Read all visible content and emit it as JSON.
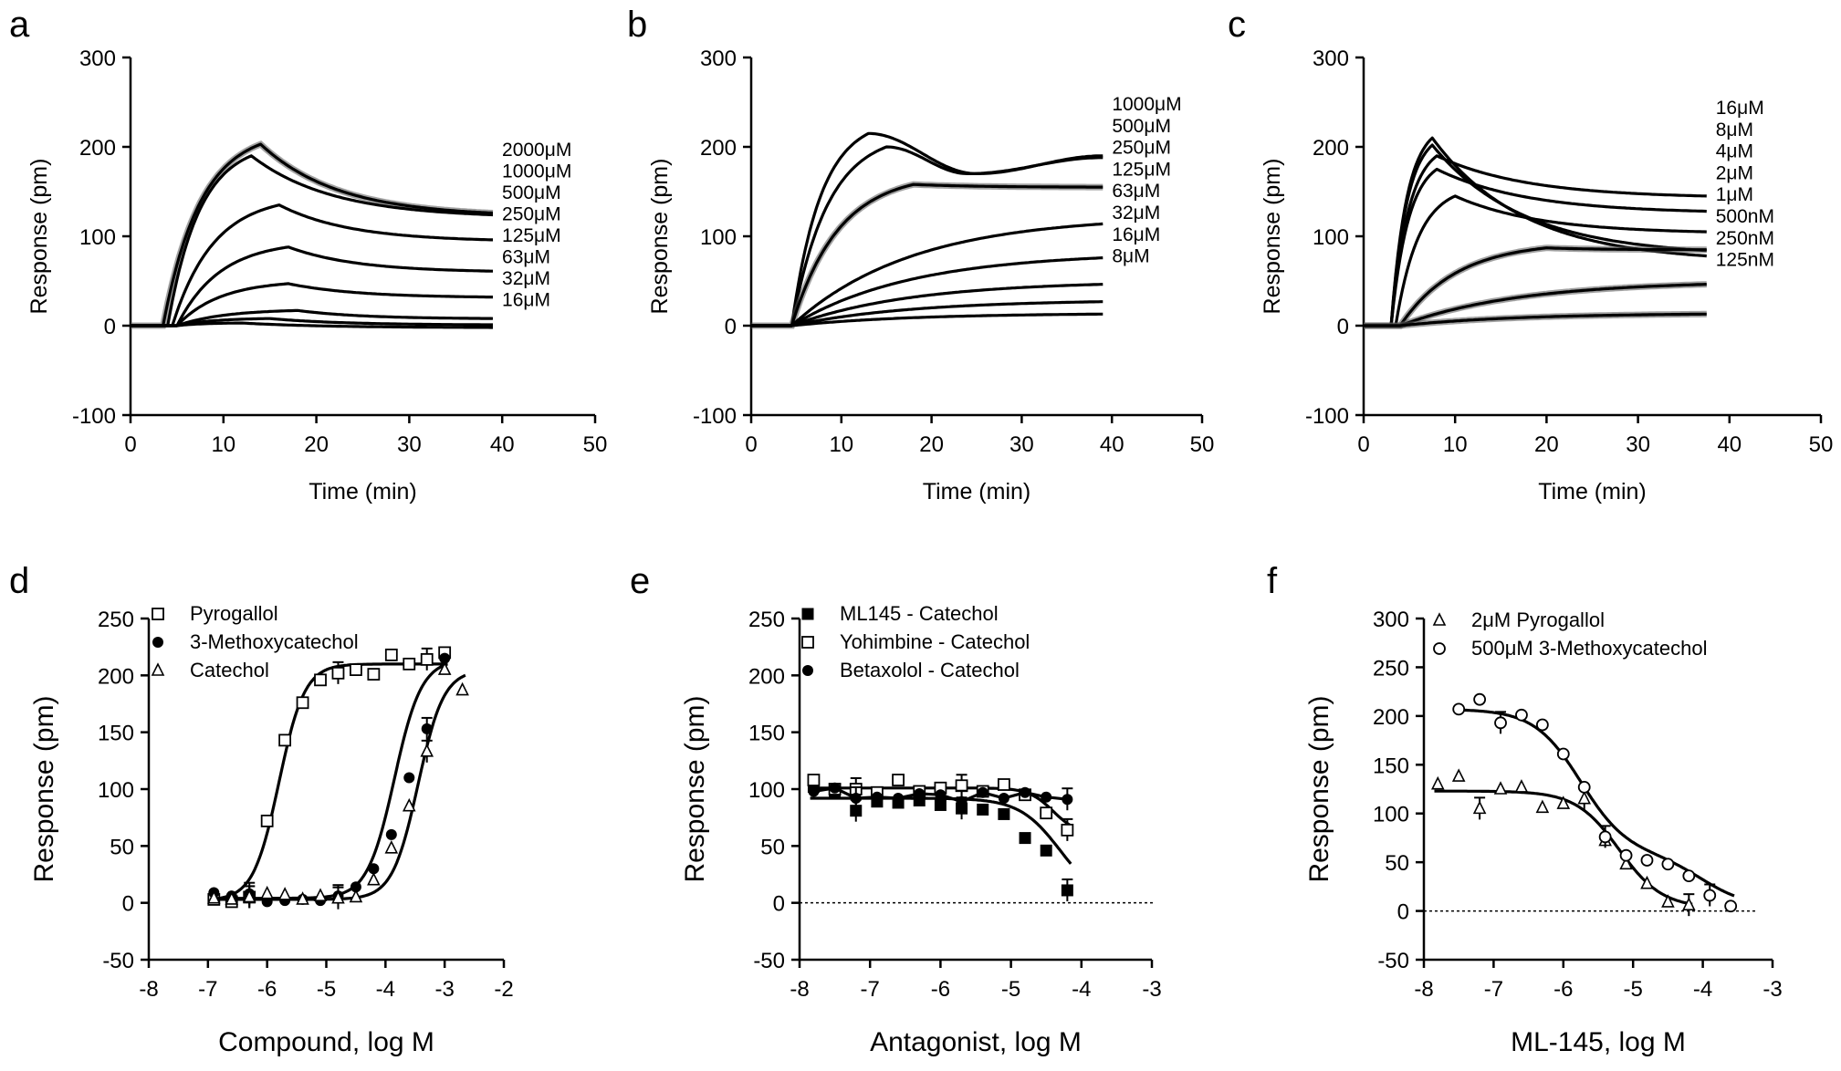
{
  "chart_data": [
    {
      "panel": "a",
      "type": "line",
      "xlabel": "Time (min)",
      "ylabel": "Response (pm)",
      "xlim": [
        0,
        50
      ],
      "ylim": [
        -100,
        300
      ],
      "xticks": [
        0,
        10,
        20,
        30,
        40,
        50
      ],
      "yticks": [
        -100,
        0,
        100,
        200,
        300
      ],
      "grid": false,
      "series": [
        {
          "name": "2000μM",
          "onset": 3.5,
          "peak": 203,
          "tpeak": 14,
          "end": 126,
          "tend": 39,
          "error": true
        },
        {
          "name": "1000μM",
          "onset": 4,
          "peak": 190,
          "tpeak": 13,
          "end": 124,
          "tend": 39,
          "error": false
        },
        {
          "name": "500μM",
          "onset": 4.5,
          "peak": 135,
          "tpeak": 16,
          "end": 96,
          "tend": 39,
          "error": false
        },
        {
          "name": "250μM",
          "onset": 5,
          "peak": 88,
          "tpeak": 17,
          "end": 61,
          "tend": 39,
          "error": false
        },
        {
          "name": "125μM",
          "onset": 5,
          "peak": 47,
          "tpeak": 17,
          "end": 32,
          "tend": 39,
          "error": false
        },
        {
          "name": "63μM",
          "onset": 5,
          "peak": 17,
          "tpeak": 18,
          "end": 8,
          "tend": 39,
          "error": false
        },
        {
          "name": "32μM",
          "onset": 5,
          "peak": 8,
          "tpeak": 15,
          "end": 1,
          "tend": 39,
          "error": false
        },
        {
          "name": "16μM",
          "onset": 5,
          "peak": 3,
          "tpeak": 12,
          "end": -2,
          "tend": 39,
          "error": false
        }
      ]
    },
    {
      "panel": "b",
      "type": "line",
      "xlabel": "Time (min)",
      "ylabel": "Response (pm)",
      "xlim": [
        0,
        50
      ],
      "ylim": [
        -100,
        300
      ],
      "xticks": [
        0,
        10,
        20,
        30,
        40,
        50
      ],
      "yticks": [
        -100,
        0,
        100,
        200,
        300
      ],
      "grid": false,
      "series": [
        {
          "name": "1000μM",
          "onset": 4.5,
          "peak": 215,
          "tpeak": 13,
          "dip": 170,
          "tdip": 25,
          "end": 190,
          "tend": 39,
          "error": false
        },
        {
          "name": "500μM",
          "onset": 4.5,
          "peak": 200,
          "tpeak": 15,
          "dip": 170,
          "tdip": 24,
          "end": 188,
          "tend": 39,
          "error": false
        },
        {
          "name": "250μM",
          "onset": 4.5,
          "peak": 158,
          "tpeak": 18,
          "end": 155,
          "tend": 39,
          "error": true
        },
        {
          "name": "125μM",
          "onset": 4.5,
          "peak": 123,
          "tpeak": 39,
          "end": 123,
          "tend": 39,
          "error": false
        },
        {
          "name": "63μM",
          "onset": 4.5,
          "peak": 82,
          "tpeak": 39,
          "end": 82,
          "tend": 39,
          "error": false
        },
        {
          "name": "32μM",
          "onset": 4.5,
          "peak": 50,
          "tpeak": 39,
          "end": 50,
          "tend": 39,
          "error": false
        },
        {
          "name": "16μM",
          "onset": 4.5,
          "peak": 29,
          "tpeak": 39,
          "end": 29,
          "tend": 39,
          "error": false
        },
        {
          "name": "8μM",
          "onset": 4.5,
          "peak": 14,
          "tpeak": 39,
          "end": 14,
          "tend": 39,
          "error": false
        }
      ]
    },
    {
      "panel": "c",
      "type": "line",
      "xlabel": "Time (min)",
      "ylabel": "Response (pm)",
      "xlim": [
        0,
        50
      ],
      "ylim": [
        -100,
        300
      ],
      "xticks": [
        0,
        10,
        20,
        30,
        40,
        50
      ],
      "yticks": [
        -100,
        0,
        100,
        200,
        300
      ],
      "grid": false,
      "series": [
        {
          "name": "16μM",
          "onset": 3,
          "peak": 210,
          "tpeak": 7.5,
          "end": 78,
          "tend": 37.5,
          "error": false
        },
        {
          "name": "8μM",
          "onset": 3,
          "peak": 202,
          "tpeak": 7.5,
          "end": 84,
          "tend": 37.5,
          "error": false
        },
        {
          "name": "4μM",
          "onset": 3,
          "peak": 190,
          "tpeak": 8,
          "end": 145,
          "tend": 37.5,
          "error": false
        },
        {
          "name": "2μM",
          "onset": 3,
          "peak": 175,
          "tpeak": 8,
          "end": 128,
          "tend": 37.5,
          "error": false
        },
        {
          "name": "1μM",
          "onset": 3.5,
          "peak": 145,
          "tpeak": 10,
          "end": 105,
          "tend": 37.5,
          "error": false
        },
        {
          "name": "500nM",
          "onset": 4,
          "peak": 87,
          "tpeak": 20,
          "end": 85,
          "tend": 37.5,
          "error": true
        },
        {
          "name": "250nM",
          "onset": 4,
          "peak": 50,
          "tpeak": 37.5,
          "end": 50,
          "tend": 37.5,
          "error": true
        },
        {
          "name": "125nM",
          "onset": 4,
          "peak": 14,
          "tpeak": 37.5,
          "end": 14,
          "tend": 37.5,
          "error": true
        }
      ]
    },
    {
      "panel": "d",
      "type": "scatter",
      "xlabel": "Compound, log M",
      "ylabel": "Response (pm)",
      "xlim": [
        -8,
        -2
      ],
      "ylim": [
        -50,
        250
      ],
      "xticks": [
        -8,
        -7,
        -6,
        -5,
        -4,
        -3,
        -2
      ],
      "yticks": [
        -50,
        0,
        50,
        100,
        150,
        200,
        250
      ],
      "legend": "top-left",
      "grid": false,
      "series": [
        {
          "name": "Pyrogallol",
          "marker": "open-square",
          "x": [
            -6.9,
            -6.6,
            -6.3,
            -6.0,
            -5.7,
            -5.4,
            -5.1,
            -4.8,
            -4.5,
            -4.2,
            -3.9,
            -3.6,
            -3.3,
            -3.0
          ],
          "y": [
            3,
            1,
            5,
            72,
            143,
            176,
            196,
            202,
            205,
            201,
            218,
            210,
            214,
            220
          ],
          "fit": {
            "bottom": 2,
            "top": 210,
            "ec50": -5.8,
            "hill": 2.0
          }
        },
        {
          "name": "3-Methoxycatechol",
          "marker": "filled-circle",
          "x": [
            -6.9,
            -6.6,
            -6.3,
            -6.0,
            -5.7,
            -5.4,
            -5.1,
            -4.8,
            -4.5,
            -4.2,
            -3.9,
            -3.6,
            -3.3,
            -3.0
          ],
          "y": [
            9,
            6,
            8,
            1,
            2,
            3,
            2,
            6,
            14,
            30,
            60,
            110,
            153,
            215
          ],
          "fit": {
            "bottom": 4,
            "top": 214,
            "ec50": -3.85,
            "hill": 1.9
          }
        },
        {
          "name": "Catechol",
          "marker": "open-triangle",
          "x": [
            -6.9,
            -6.6,
            -6.3,
            -6.0,
            -5.7,
            -5.4,
            -5.1,
            -4.8,
            -4.5,
            -4.2,
            -3.9,
            -3.6,
            -3.3,
            -3.0,
            -2.7
          ],
          "y": [
            4,
            3,
            5,
            8,
            7,
            3,
            6,
            4,
            5,
            20,
            48,
            85,
            133,
            205,
            187
          ],
          "fit": {
            "bottom": 3,
            "top": 205,
            "ec50": -3.45,
            "hill": 2.0
          }
        }
      ]
    },
    {
      "panel": "e",
      "type": "scatter",
      "xlabel": "Antagonist, log M",
      "ylabel": "Response (pm)",
      "xlim": [
        -8,
        -3
      ],
      "ylim": [
        -50,
        250
      ],
      "xticks": [
        -8,
        -7,
        -6,
        -5,
        -4,
        -3
      ],
      "yticks": [
        -50,
        0,
        50,
        100,
        150,
        200,
        250
      ],
      "legend": "top-left",
      "grid": false,
      "reference_line": 0,
      "series": [
        {
          "name": "ML145 - Catechol",
          "marker": "filled-square",
          "x": [
            -7.8,
            -7.5,
            -7.2,
            -6.9,
            -6.6,
            -6.3,
            -6.0,
            -5.7,
            -5.4,
            -5.1,
            -4.8,
            -4.5,
            -4.2
          ],
          "y": [
            102,
            97,
            81,
            89,
            88,
            90,
            86,
            83,
            82,
            78,
            57,
            46,
            11
          ],
          "fit": {
            "bottom": 0,
            "top": 92,
            "ec50": -4.3,
            "hill": 1.5
          }
        },
        {
          "name": "Yohimbine - Catechol",
          "marker": "open-square",
          "x": [
            -7.8,
            -7.5,
            -7.2,
            -6.9,
            -6.6,
            -6.3,
            -6.0,
            -5.7,
            -5.4,
            -5.1,
            -4.8,
            -4.5,
            -4.2
          ],
          "y": [
            108,
            100,
            100,
            97,
            108,
            98,
            101,
            103,
            98,
            104,
            95,
            79,
            64
          ],
          "fit": {
            "bottom": 60,
            "top": 101,
            "ec50": -4.4,
            "hill": 2.5
          }
        },
        {
          "name": "Betaxolol - Catechol",
          "marker": "filled-circle",
          "x": [
            -7.8,
            -7.5,
            -7.2,
            -6.9,
            -6.6,
            -6.3,
            -6.0,
            -5.7,
            -5.4,
            -5.1,
            -4.8,
            -4.5,
            -4.2
          ],
          "y": [
            98,
            101,
            92,
            93,
            92,
            96,
            95,
            89,
            97,
            92,
            97,
            93,
            91
          ]
        }
      ]
    },
    {
      "panel": "f",
      "type": "scatter",
      "xlabel": "ML-145, log M",
      "ylabel": "Response (pm)",
      "xlim": [
        -8,
        -3
      ],
      "ylim": [
        -50,
        300
      ],
      "xticks": [
        -8,
        -7,
        -6,
        -5,
        -4,
        -3
      ],
      "yticks": [
        -50,
        0,
        50,
        100,
        150,
        200,
        250,
        300
      ],
      "legend": "top-left",
      "grid": false,
      "reference_line": 0,
      "series": [
        {
          "name": "2μM Pyrogallol",
          "marker": "open-triangle",
          "x": [
            -7.8,
            -7.5,
            -7.2,
            -6.9,
            -6.6,
            -6.3,
            -6.0,
            -5.7,
            -5.4,
            -5.1,
            -4.8,
            -4.5,
            -4.2
          ],
          "y": [
            130,
            138,
            105,
            125,
            127,
            106,
            110,
            115,
            72,
            48,
            28,
            9,
            6
          ],
          "fit": {
            "bottom": 3,
            "top": 123,
            "ec50": -5.2,
            "hill": 1.4
          }
        },
        {
          "name": "500μM 3-Methoxycatechol",
          "marker": "open-circle",
          "x": [
            -7.5,
            -7.2,
            -6.9,
            -6.6,
            -6.3,
            -6.0,
            -5.7,
            -5.4,
            -5.1,
            -4.8,
            -4.5,
            -4.2,
            -3.9,
            -3.6
          ],
          "y": [
            207,
            217,
            193,
            201,
            191,
            161,
            127,
            76,
            57,
            52,
            48,
            36,
            16,
            5
          ],
          "fit": {
            "biphasic": true,
            "bottom": 4,
            "top": 207,
            "ec50a": -5.75,
            "ec50b": -4.0,
            "frac": 0.73,
            "hill": 1.3
          }
        }
      ]
    }
  ]
}
